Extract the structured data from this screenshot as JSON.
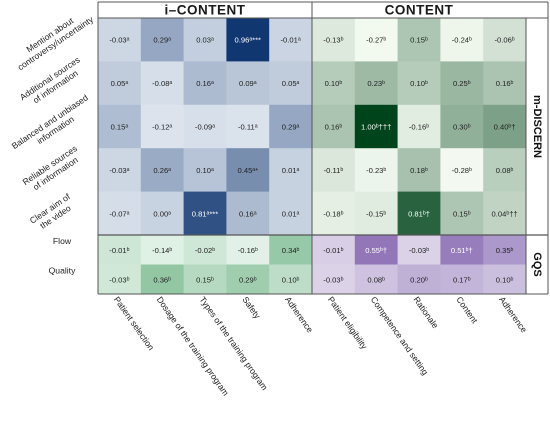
{
  "chart_data": {
    "type": "heatmap",
    "groups": [
      {
        "title": "i–CONTENT",
        "columns": [
          "Patient selection",
          "Dosage of the training program",
          "Types of the training program",
          "Safety",
          "Adherence"
        ]
      },
      {
        "title": "CONTENT",
        "columns": [
          "Patient eligibility",
          "Competence and setting",
          "Rationale",
          "Content",
          "Adherence"
        ]
      }
    ],
    "sections": [
      {
        "title": "m-DISCERN",
        "rows": [
          {
            "label_lines": [
              "Mention about",
              "controversy/uncertainty"
            ],
            "left": [
              {
                "v": -0.03,
                "t": "-0.03ᵃ"
              },
              {
                "v": 0.29,
                "t": "0.29ᵃ"
              },
              {
                "v": 0.03,
                "t": "0.03ᵃ"
              },
              {
                "v": 0.96,
                "t": "0.96ᵃ***"
              },
              {
                "v": -0.01,
                "t": "-0.01ᵃ"
              }
            ],
            "right": [
              {
                "v": -0.13,
                "t": "-0.13ᵇ"
              },
              {
                "v": -0.27,
                "t": "-0.27ᵇ"
              },
              {
                "v": 0.15,
                "t": "0.15ᵇ"
              },
              {
                "v": -0.24,
                "t": "-0.24ᵇ"
              },
              {
                "v": -0.06,
                "t": "-0.06ᵇ"
              }
            ]
          },
          {
            "label_lines": [
              "Additional sources",
              "of information"
            ],
            "left": [
              {
                "v": 0.05,
                "t": "0.05ᵃ"
              },
              {
                "v": -0.08,
                "t": "-0.08ᵃ"
              },
              {
                "v": 0.16,
                "t": "0.16ᵃ"
              },
              {
                "v": 0.09,
                "t": "0.09ᵃ"
              },
              {
                "v": 0.05,
                "t": "0.05ᵃ"
              }
            ],
            "right": [
              {
                "v": 0.1,
                "t": "0.10ᵇ"
              },
              {
                "v": 0.23,
                "t": "0.23ᵇ"
              },
              {
                "v": 0.1,
                "t": "0.10ᵇ"
              },
              {
                "v": 0.25,
                "t": "0.25ᵇ"
              },
              {
                "v": 0.16,
                "t": "0.16ᵇ"
              }
            ]
          },
          {
            "label_lines": [
              "Balanced and unbiased",
              "information"
            ],
            "left": [
              {
                "v": 0.15,
                "t": "0.15ᵃ"
              },
              {
                "v": -0.12,
                "t": "-0.12ᵃ"
              },
              {
                "v": -0.09,
                "t": "-0.09ᵃ"
              },
              {
                "v": -0.11,
                "t": "-0.11ᵃ"
              },
              {
                "v": 0.29,
                "t": "0.29ᵃ"
              }
            ],
            "right": [
              {
                "v": 0.16,
                "t": "0.16ᵇ"
              },
              {
                "v": 1.0,
                "t": "1.00ᵇ†††"
              },
              {
                "v": -0.16,
                "t": "-0.16ᵇ"
              },
              {
                "v": 0.3,
                "t": "0.30ᵇ"
              },
              {
                "v": 0.4,
                "t": "0.40ᵇ†"
              }
            ]
          },
          {
            "label_lines": [
              "Reliable sources",
              "of information"
            ],
            "left": [
              {
                "v": -0.03,
                "t": "-0.03ᵃ"
              },
              {
                "v": 0.26,
                "t": "0.26ᵃ"
              },
              {
                "v": 0.1,
                "t": "0.10ᵃ"
              },
              {
                "v": 0.45,
                "t": "0.45ᵃ*"
              },
              {
                "v": 0.01,
                "t": "0.01ᵃ"
              }
            ],
            "right": [
              {
                "v": -0.11,
                "t": "-0.11ᵇ"
              },
              {
                "v": -0.23,
                "t": "-0.23ᵇ"
              },
              {
                "v": 0.18,
                "t": "0.18ᵇ"
              },
              {
                "v": -0.28,
                "t": "-0.28ᵇ"
              },
              {
                "v": 0.08,
                "t": "0.08ᵇ"
              }
            ]
          },
          {
            "label_lines": [
              "Clear aim of",
              "the video"
            ],
            "left": [
              {
                "v": -0.07,
                "t": "-0.07ᵃ"
              },
              {
                "v": 0.0,
                "t": "0.00ᵃ"
              },
              {
                "v": 0.81,
                "t": "0.81ᵃ***"
              },
              {
                "v": 0.16,
                "t": "0.16ᵃ"
              },
              {
                "v": 0.01,
                "t": "0.01ᵃ"
              }
            ],
            "right": [
              {
                "v": -0.18,
                "t": "-0.18ᵇ"
              },
              {
                "v": -0.15,
                "t": "-0.15ᵇ"
              },
              {
                "v": 0.81,
                "t": "0.81ᵇ†"
              },
              {
                "v": 0.15,
                "t": "0.15ᵇ"
              },
              {
                "v": 0.04,
                "t": "0.04ᵇ††"
              }
            ]
          }
        ]
      },
      {
        "title": "GQS",
        "rows": [
          {
            "label_lines": [
              "Flow"
            ],
            "left": [
              {
                "v": -0.01,
                "t": "-0.01ᵇ"
              },
              {
                "v": -0.14,
                "t": "-0.14ᵇ"
              },
              {
                "v": -0.02,
                "t": "-0.02ᵇ"
              },
              {
                "v": -0.16,
                "t": "-0.16ᵇ"
              },
              {
                "v": 0.34,
                "t": "0.34ᵇ"
              }
            ],
            "right": [
              {
                "v": -0.01,
                "t": "-0.01ᵇ"
              },
              {
                "v": 0.55,
                "t": "0.55ᵇ†"
              },
              {
                "v": -0.03,
                "t": "-0.03ᵇ"
              },
              {
                "v": 0.51,
                "t": "0.51ᵇ†"
              },
              {
                "v": 0.35,
                "t": "0.35ᵇ"
              }
            ]
          },
          {
            "label_lines": [
              "Quality"
            ],
            "left": [
              {
                "v": -0.03,
                "t": "-0.03ᵇ"
              },
              {
                "v": 0.36,
                "t": "0.36ᵇ"
              },
              {
                "v": 0.15,
                "t": "0.15ᵇ"
              },
              {
                "v": 0.29,
                "t": "0.29ᵇ"
              },
              {
                "v": 0.1,
                "t": "0.10ᵇ"
              }
            ],
            "right": [
              {
                "v": -0.03,
                "t": "-0.03ᵇ"
              },
              {
                "v": 0.08,
                "t": "0.08ᵇ"
              },
              {
                "v": 0.2,
                "t": "0.20ᵇ"
              },
              {
                "v": 0.17,
                "t": "0.17ᵇ"
              },
              {
                "v": 0.1,
                "t": "0.10ᵇ"
              }
            ]
          }
        ]
      }
    ],
    "value_range": [
      -0.3,
      1.0
    ],
    "color_scales": {
      "m-DISCERN_left": {
        "low": "#f4f8fc",
        "high": "#08306b"
      },
      "m-DISCERN_right": {
        "low": "#f5fbf2",
        "high": "#00441b"
      },
      "GQS_left": {
        "low": "#f2faf5",
        "high": "#238b45"
      },
      "GQS_right": {
        "low": "#f5f4fa",
        "high": "#54278f"
      }
    }
  }
}
